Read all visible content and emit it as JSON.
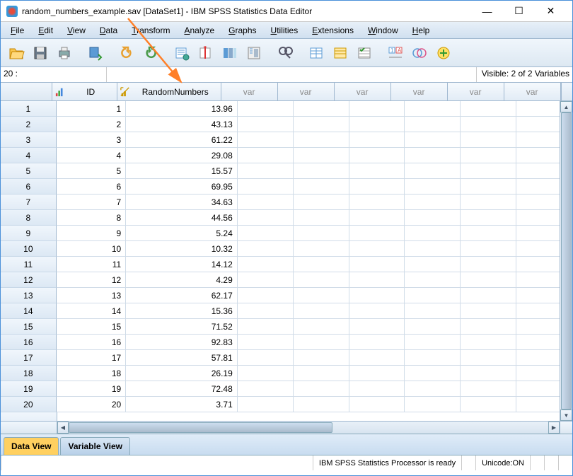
{
  "window": {
    "title": "random_numbers_example.sav [DataSet1] - IBM SPSS Statistics Data Editor",
    "minimize": "—",
    "maximize": "☐",
    "close": "✕"
  },
  "menus": [
    "File",
    "Edit",
    "View",
    "Data",
    "Transform",
    "Analyze",
    "Graphs",
    "Utilities",
    "Extensions",
    "Window",
    "Help"
  ],
  "info": {
    "cell_indicator": "20 :",
    "visible": "Visible: 2 of 2 Variables"
  },
  "columns": {
    "named": [
      "ID",
      "RandomNumbers"
    ],
    "vars": [
      "var",
      "var",
      "var",
      "var",
      "var",
      "var"
    ]
  },
  "rows": [
    {
      "n": 1,
      "id": 1,
      "rn": "13.96"
    },
    {
      "n": 2,
      "id": 2,
      "rn": "43.13"
    },
    {
      "n": 3,
      "id": 3,
      "rn": "61.22"
    },
    {
      "n": 4,
      "id": 4,
      "rn": "29.08"
    },
    {
      "n": 5,
      "id": 5,
      "rn": "15.57"
    },
    {
      "n": 6,
      "id": 6,
      "rn": "69.95"
    },
    {
      "n": 7,
      "id": 7,
      "rn": "34.63"
    },
    {
      "n": 8,
      "id": 8,
      "rn": "44.56"
    },
    {
      "n": 9,
      "id": 9,
      "rn": "5.24"
    },
    {
      "n": 10,
      "id": 10,
      "rn": "10.32"
    },
    {
      "n": 11,
      "id": 11,
      "rn": "14.12"
    },
    {
      "n": 12,
      "id": 12,
      "rn": "4.29"
    },
    {
      "n": 13,
      "id": 13,
      "rn": "62.17"
    },
    {
      "n": 14,
      "id": 14,
      "rn": "15.36"
    },
    {
      "n": 15,
      "id": 15,
      "rn": "71.52"
    },
    {
      "n": 16,
      "id": 16,
      "rn": "92.83"
    },
    {
      "n": 17,
      "id": 17,
      "rn": "57.81"
    },
    {
      "n": 18,
      "id": 18,
      "rn": "26.19"
    },
    {
      "n": 19,
      "id": 19,
      "rn": "72.48"
    },
    {
      "n": 20,
      "id": 20,
      "rn": "3.71"
    }
  ],
  "tabs": {
    "data_view": "Data View",
    "variable_view": "Variable View"
  },
  "status": {
    "processor": "IBM SPSS Statistics Processor is ready",
    "unicode": "Unicode:ON"
  },
  "annotation": {
    "arrow_color": "#ff7f27"
  },
  "colors": {
    "header_grad_a": "#f0f6fc",
    "header_grad_b": "#dde8f2",
    "border": "#a0b8d0",
    "active_tab": "#ffd060"
  }
}
